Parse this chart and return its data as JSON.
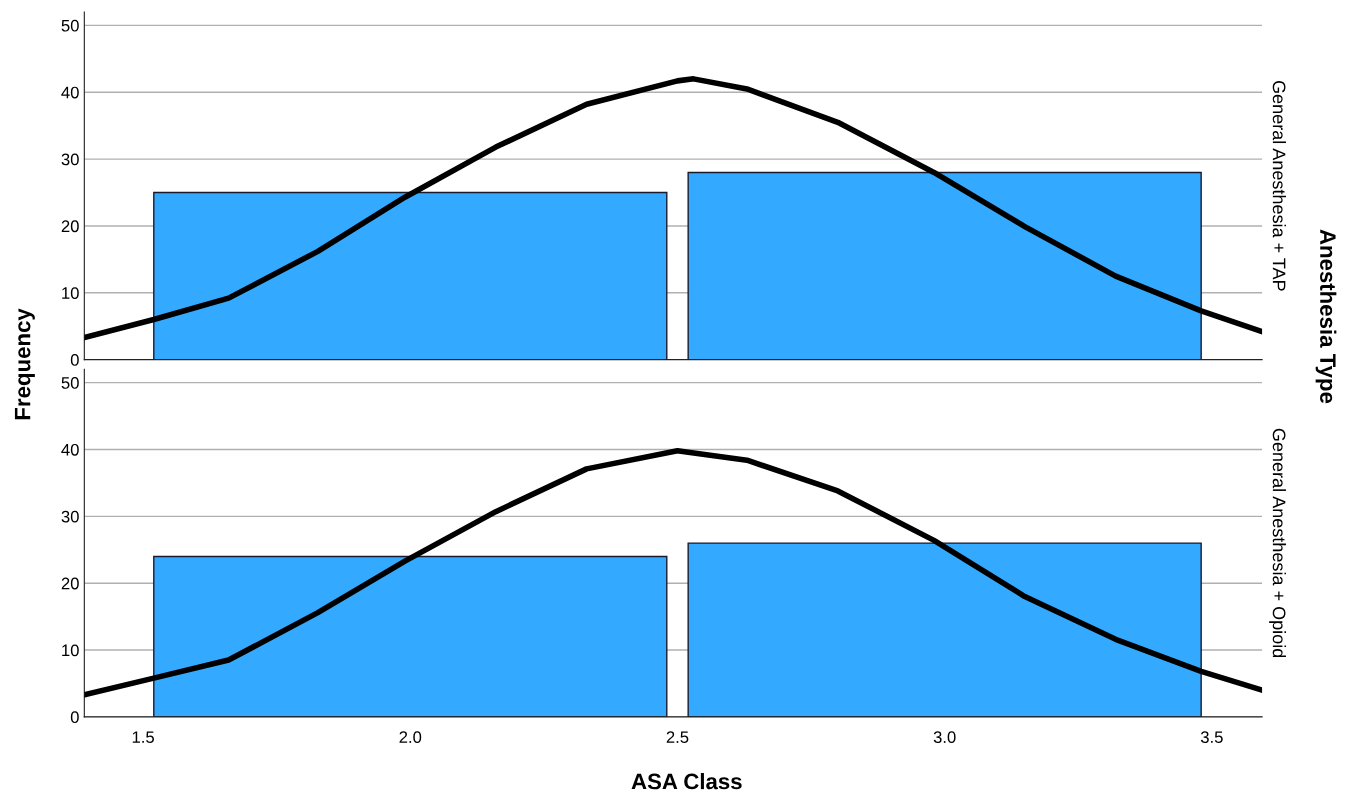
{
  "chart_data": [
    {
      "type": "bar",
      "ylabel": "Frequency",
      "annotations": [
        "General Anesthesia + TAP",
        "Anesthesia Type"
      ],
      "xlim": [
        1.39,
        3.594
      ],
      "ylim": [
        0,
        52
      ],
      "yticks": [
        0,
        10,
        20,
        30,
        40,
        50
      ],
      "tick_labels": "y",
      "grid": "y",
      "legend": false,
      "series": [
        {
          "color": "#33aaff",
          "x": [
            2.0,
            3.0
          ],
          "values": [
            25,
            28
          ]
        },
        {
          "type": "line",
          "color": "#000000",
          "line_style": "solid",
          "x": [
            1.39,
            1.52,
            1.66,
            1.827,
            1.99,
            2.16,
            2.33,
            2.5,
            2.53,
            2.63,
            2.8,
            2.98,
            3.15,
            3.32,
            3.48,
            3.594
          ],
          "values": [
            3.3,
            6,
            9.2,
            16.2,
            24.3,
            31.8,
            38.2,
            41.7,
            42,
            40.5,
            35.5,
            28,
            19.9,
            12.5,
            7.3,
            4.2
          ]
        }
      ]
    },
    {
      "type": "bar",
      "annotations": [
        "General Anesthesia + Opioid"
      ],
      "xlabel": "ASA Class",
      "xlim": [
        1.39,
        3.594
      ],
      "xticks": [
        {
          "value": 1.5,
          "label": "1.5"
        },
        {
          "value": 2.0,
          "label": "2.0"
        },
        {
          "value": 2.5,
          "label": "2.5"
        },
        {
          "value": 3.0,
          "label": "3.0"
        },
        {
          "value": 3.5,
          "label": "3.5"
        }
      ],
      "ylim": [
        0,
        52
      ],
      "yticks": [
        0,
        10,
        20,
        30,
        40,
        50
      ],
      "grid": "y",
      "legend": false,
      "series": [
        {
          "color": "#33aaff",
          "x": [
            2.0,
            3.0
          ],
          "values": [
            24,
            26
          ]
        },
        {
          "type": "line",
          "color": "#000000",
          "line_style": "solid",
          "x": [
            1.39,
            1.52,
            1.66,
            1.827,
            1.99,
            2.16,
            2.33,
            2.5,
            2.52,
            2.63,
            2.8,
            2.98,
            3.15,
            3.32,
            3.48,
            3.594
          ],
          "values": [
            3.3,
            5.8,
            8.5,
            15.6,
            23.3,
            30.7,
            37.1,
            39.8,
            39.6,
            38.4,
            33.8,
            26.4,
            18.0,
            11.6,
            6.8,
            4.0
          ]
        }
      ]
    }
  ]
}
